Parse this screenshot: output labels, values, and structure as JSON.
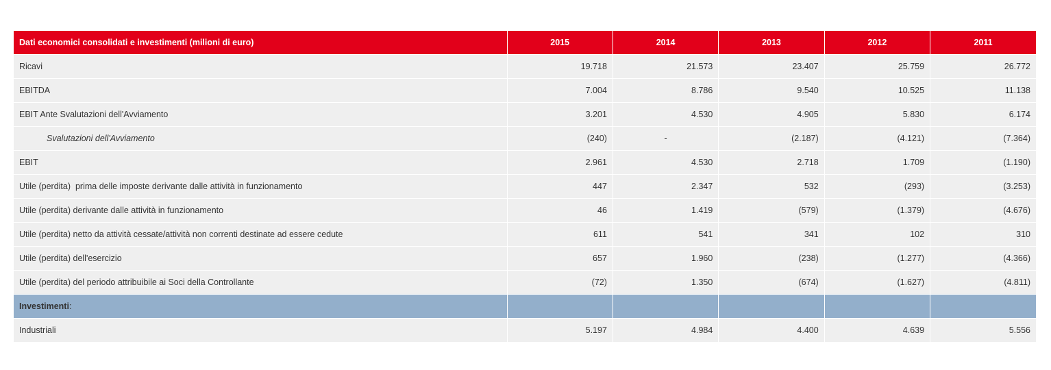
{
  "table": {
    "header": {
      "label": "Dati economici consolidati e investimenti (milioni di euro)",
      "years": [
        "2015",
        "2014",
        "2013",
        "2012",
        "2011"
      ]
    },
    "rows": [
      {
        "label": "Ricavi",
        "values": [
          "19.718",
          "21.573",
          "23.407",
          "25.759",
          "26.772"
        ]
      },
      {
        "label": "EBITDA",
        "values": [
          "7.004",
          "8.786",
          "9.540",
          "10.525",
          "11.138"
        ]
      },
      {
        "label": "EBIT Ante Svalutazioni dell'Avviamento",
        "values": [
          "3.201",
          "4.530",
          "4.905",
          "5.830",
          "6.174"
        ]
      },
      {
        "label": "Svalutazioni dell'Avviamento",
        "values": [
          "(240)",
          "-",
          "(2.187)",
          "(4.121)",
          "(7.364)"
        ]
      },
      {
        "label": "EBIT",
        "values": [
          "2.961",
          "4.530",
          "2.718",
          "1.709",
          "(1.190)"
        ]
      },
      {
        "label": "Utile (perdita)  prima delle imposte derivante dalle attività in funzionamento",
        "values": [
          "447",
          "2.347",
          "532",
          "(293)",
          "(3.253)"
        ]
      },
      {
        "label": "Utile (perdita) derivante dalle attività in funzionamento",
        "values": [
          "46",
          "1.419",
          "(579)",
          "(1.379)",
          "(4.676)"
        ]
      },
      {
        "label": "Utile (perdita) netto da attività cessate/attività non correnti destinate ad essere cedute",
        "values": [
          "611",
          "541",
          "341",
          "102",
          "310"
        ]
      },
      {
        "label": "Utile (perdita) dell'esercizio",
        "values": [
          "657",
          "1.960",
          "(238)",
          "(1.277)",
          "(4.366)"
        ]
      },
      {
        "label": "Utile (perdita) del periodo attribuibile ai Soci della Controllante",
        "values": [
          "(72)",
          "1.350",
          "(674)",
          "(1.627)",
          "(4.811)"
        ]
      }
    ],
    "section": {
      "label": "Investimenti",
      "suffix": ":"
    },
    "section_rows": [
      {
        "label": "Industriali",
        "values": [
          "5.197",
          "4.984",
          "4.400",
          "4.639",
          "5.556"
        ]
      }
    ]
  },
  "colors": {
    "header_bg": "#e2001a",
    "row_bg": "#efefef",
    "section_bg": "#93afcb"
  }
}
